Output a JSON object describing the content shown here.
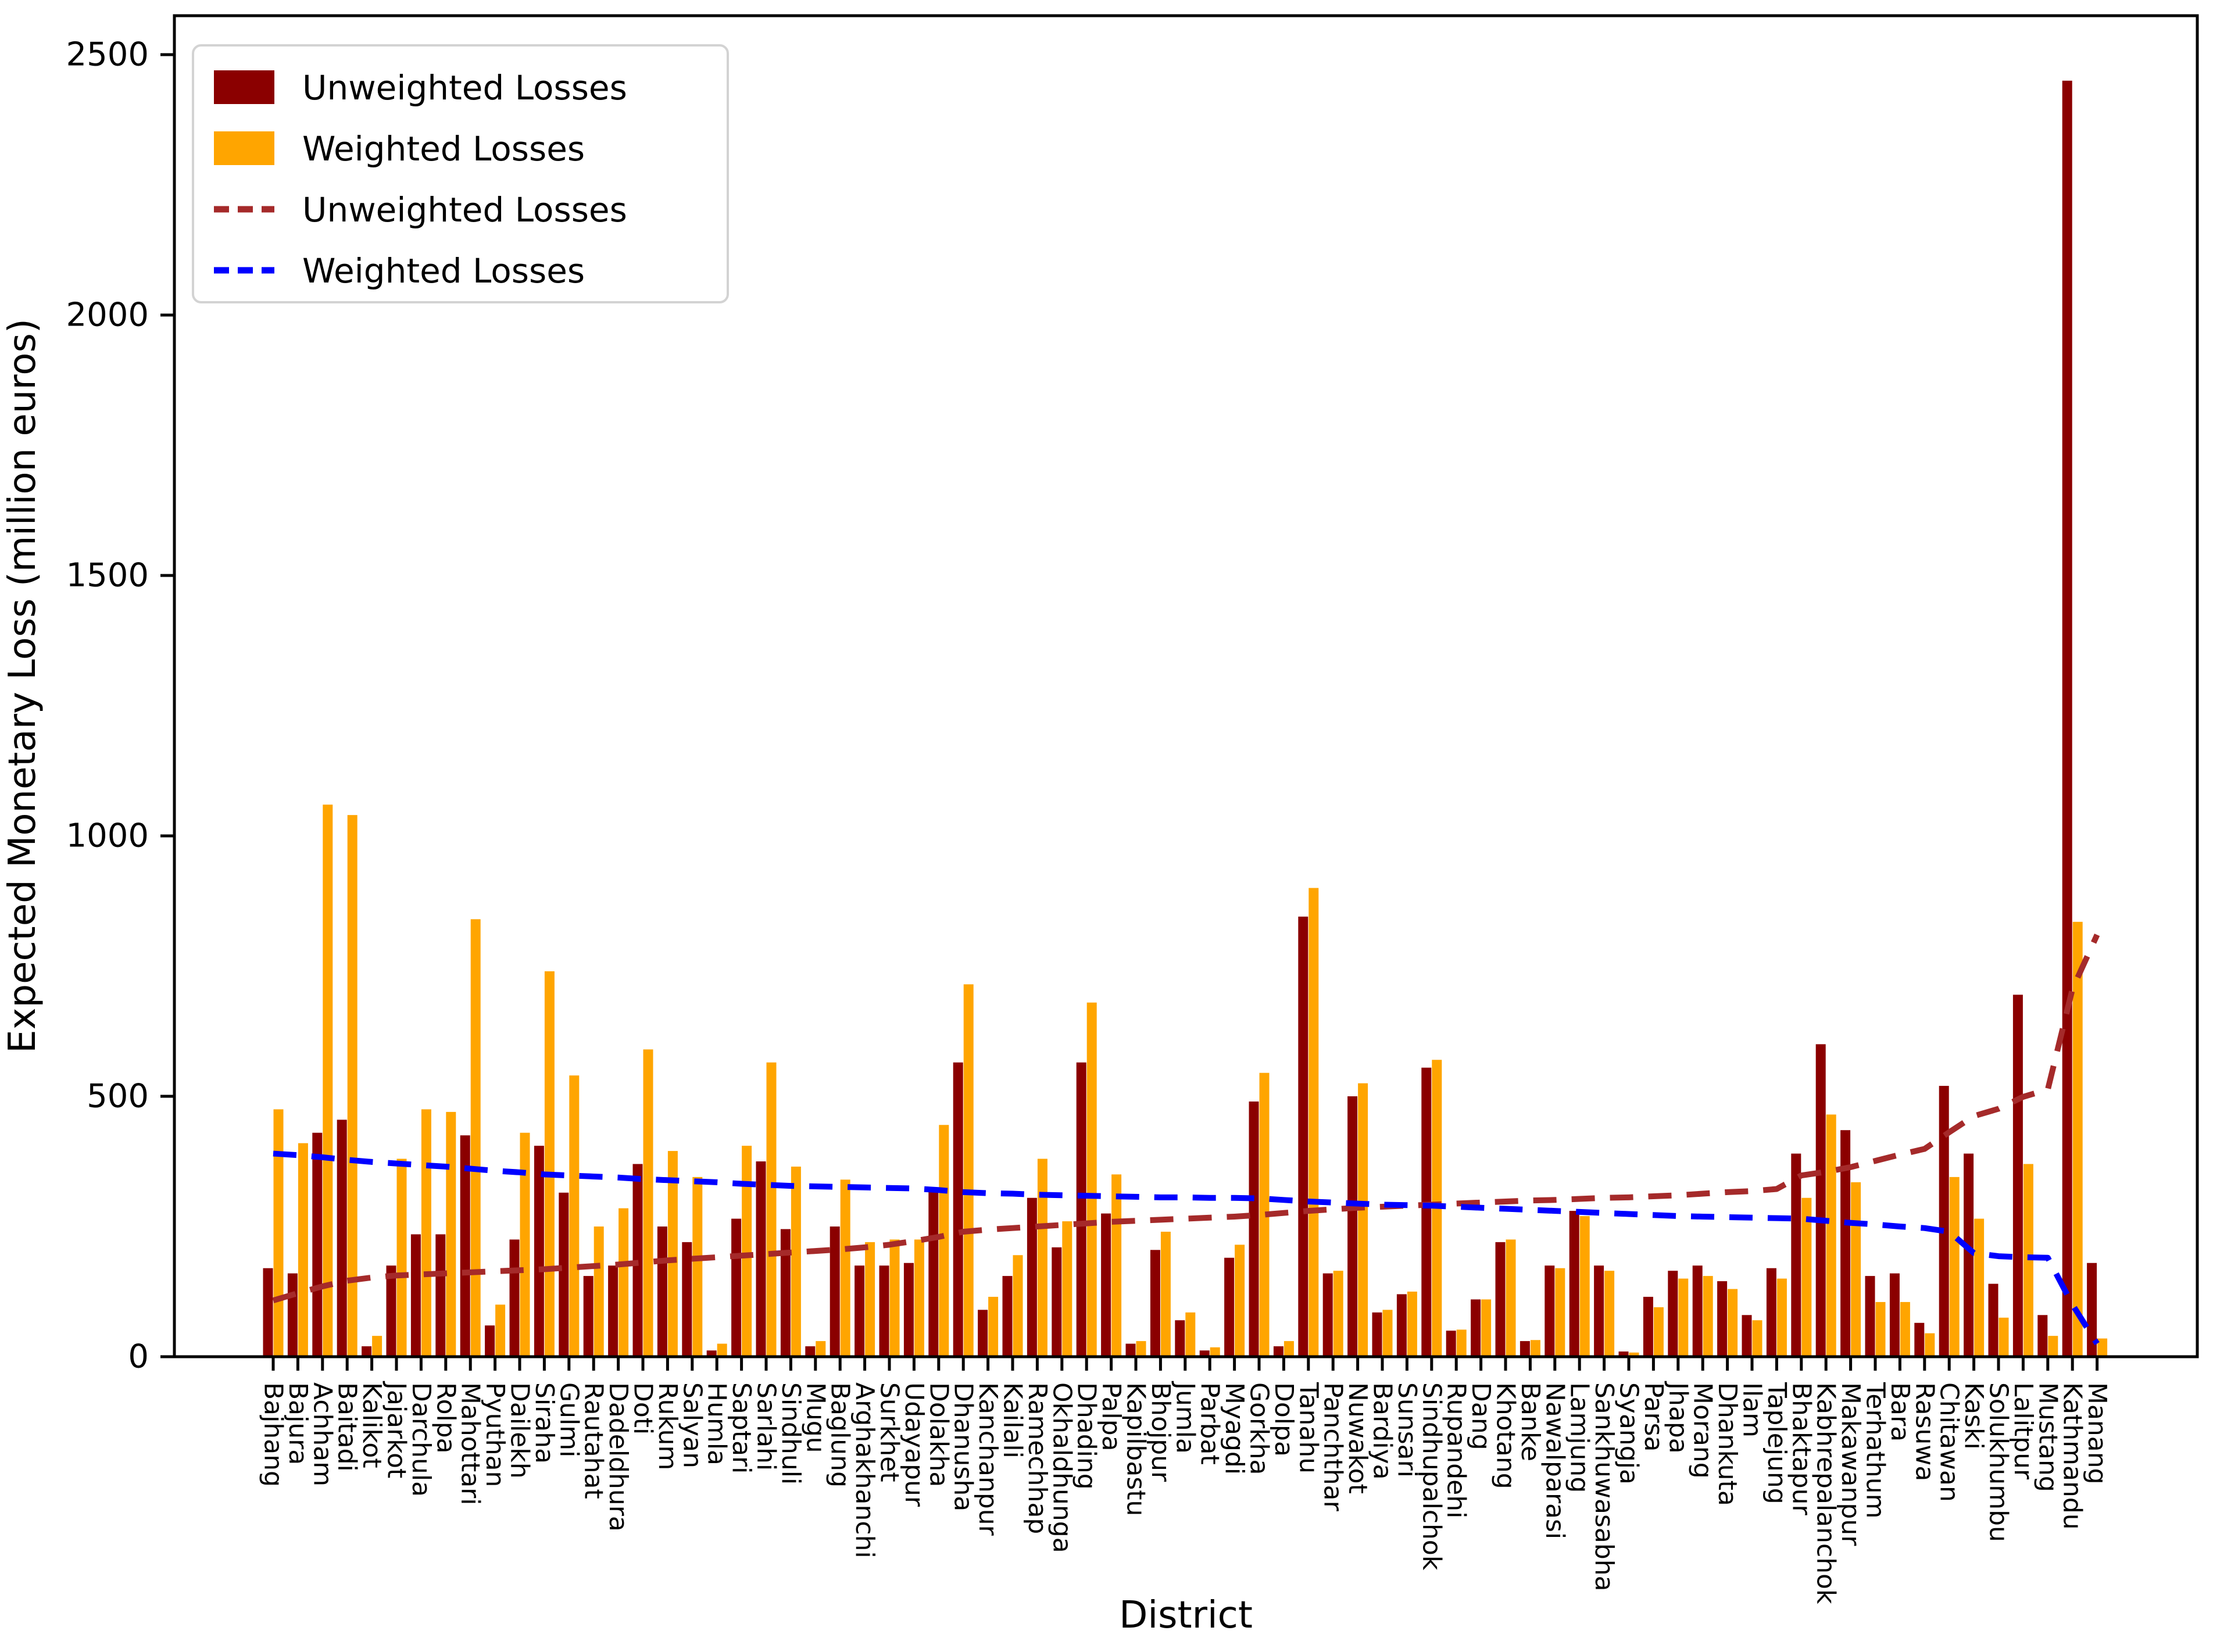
{
  "figure": {
    "x_axis_label": "District",
    "y_axis_label": "Expected Monetary Loss (million euros)",
    "colors": {
      "unweighted_bar": "#8B0000",
      "weighted_bar": "#FFA500",
      "unweighted_line": "#A52A2A",
      "weighted_line": "#0000FF",
      "axis": "#000000",
      "legend_border": "#D3D3D3",
      "background": "#FFFFFF"
    },
    "legend": {
      "position": "upper left",
      "items": [
        {
          "label": "Unweighted Losses",
          "swatch": "bar",
          "color": "#8B0000"
        },
        {
          "label": "Weighted Losses",
          "swatch": "bar",
          "color": "#FFA500"
        },
        {
          "label": "Unweighted Losses",
          "swatch": "dashed-line",
          "color": "#A52A2A"
        },
        {
          "label": "Weighted Losses",
          "swatch": "dashed-line",
          "color": "#0000FF"
        }
      ]
    }
  },
  "chart_data": {
    "type": "bar",
    "title": "",
    "xlabel": "District",
    "ylabel": "Expected Monetary Loss (million euros)",
    "ylim": [
      0,
      2575
    ],
    "yticks": [
      0,
      500,
      1000,
      1500,
      2000,
      2500
    ],
    "grid": false,
    "legend_position": "upper left",
    "categories": [
      "Bajhang",
      "Bajura",
      "Achham",
      "Baitadi",
      "Kalikot",
      "Jajarkot",
      "Darchula",
      "Rolpa",
      "Mahottari",
      "Pyuthan",
      "Dailekh",
      "Siraha",
      "Gulmi",
      "Rautahat",
      "Dadeldhura",
      "Doti",
      "Rukum",
      "Salyan",
      "Humla",
      "Saptari",
      "Sarlahi",
      "Sindhuli",
      "Mugu",
      "Baglung",
      "Arghakhanchi",
      "Surkhet",
      "Udayapur",
      "Dolakha",
      "Dhanusha",
      "Kanchanpur",
      "Kailali",
      "Ramechhap",
      "Okhaldhunga",
      "Dhading",
      "Palpa",
      "Kapilbastu",
      "Bhojpur",
      "Jumla",
      "Parbat",
      "Myagdi",
      "Gorkha",
      "Dolpa",
      "Tanahu",
      "Panchthar",
      "Nuwakot",
      "Bardiya",
      "Sunsari",
      "Sindhupalchok",
      "Rupandehi",
      "Dang",
      "Khotang",
      "Banke",
      "Nawalparasi",
      "Lamjung",
      "Sankhuwasabha",
      "Syangja",
      "Parsa",
      "Jhapa",
      "Morang",
      "Dhankuta",
      "Ilam",
      "Taplejung",
      "Bhaktapur",
      "Kabhrepalanchok",
      "Makawanpur",
      "Terhathum",
      "Bara",
      "Rasuwa",
      "Chitawan",
      "Kaski",
      "Solukhumbu",
      "Lalitpur",
      "Mustang",
      "Kathmandu",
      "Manang"
    ],
    "series": [
      {
        "name": "Unweighted Losses",
        "render": "bar",
        "color": "#8B0000",
        "values": [
          170,
          160,
          430,
          455,
          20,
          175,
          235,
          235,
          425,
          60,
          225,
          405,
          315,
          155,
          175,
          370,
          250,
          220,
          12,
          265,
          375,
          245,
          20,
          250,
          175,
          175,
          180,
          325,
          565,
          90,
          155,
          305,
          210,
          565,
          275,
          25,
          205,
          70,
          12,
          190,
          490,
          20,
          845,
          160,
          500,
          85,
          120,
          555,
          50,
          110,
          220,
          30,
          175,
          280,
          175,
          10,
          115,
          165,
          175,
          145,
          80,
          170,
          390,
          600,
          435,
          155,
          160,
          65,
          520,
          390,
          140,
          695,
          80,
          2450,
          180
        ]
      },
      {
        "name": "Weighted Losses",
        "render": "bar",
        "color": "#FFA500",
        "values": [
          475,
          410,
          1060,
          1040,
          40,
          380,
          475,
          470,
          840,
          100,
          430,
          740,
          540,
          250,
          285,
          590,
          395,
          345,
          25,
          405,
          565,
          365,
          30,
          340,
          220,
          225,
          225,
          445,
          715,
          115,
          195,
          380,
          260,
          680,
          350,
          30,
          240,
          85,
          18,
          215,
          545,
          30,
          900,
          165,
          525,
          90,
          125,
          570,
          52,
          110,
          225,
          32,
          170,
          270,
          165,
          8,
          95,
          150,
          155,
          130,
          70,
          150,
          305,
          465,
          335,
          105,
          105,
          45,
          345,
          265,
          75,
          370,
          40,
          835,
          35
        ]
      },
      {
        "name": "Unweighted Losses",
        "render": "line",
        "linestyle": "dashed",
        "color": "#A52A2A",
        "values": [
          108,
          122,
          135,
          146,
          152,
          156,
          158,
          160,
          162,
          164,
          166,
          168,
          171,
          174,
          177,
          181,
          185,
          188,
          191,
          194,
          197,
          200,
          203,
          206,
          210,
          215,
          222,
          230,
          240,
          244,
          247,
          250,
          253,
          256,
          259,
          261,
          263,
          265,
          267,
          269,
          272,
          276,
          280,
          283,
          286,
          288,
          290,
          292,
          294,
          296,
          298,
          300,
          301,
          303,
          305,
          306,
          308,
          310,
          313,
          316,
          318,
          322,
          348,
          355,
          364,
          376,
          388,
          399,
          431,
          462,
          476,
          499,
          513,
          706,
          810
        ]
      },
      {
        "name": "Weighted Losses",
        "render": "line",
        "linestyle": "dashed",
        "color": "#0000FF",
        "values": [
          390,
          387,
          383,
          378,
          374,
          371,
          368,
          365,
          361,
          357,
          354,
          350,
          348,
          346,
          344,
          341,
          339,
          337,
          335,
          332,
          330,
          328,
          327,
          326,
          325,
          324,
          323,
          320,
          316,
          314,
          313,
          311,
          310,
          309,
          308,
          307,
          306,
          306,
          305,
          305,
          304,
          301,
          298,
          296,
          294,
          292,
          291,
          290,
          288,
          286,
          284,
          282,
          280,
          278,
          276,
          274,
          272,
          270,
          269,
          268,
          267,
          266,
          265,
          261,
          257,
          254,
          250,
          247,
          240,
          199,
          193,
          191,
          190,
          100,
          25
        ]
      }
    ]
  }
}
